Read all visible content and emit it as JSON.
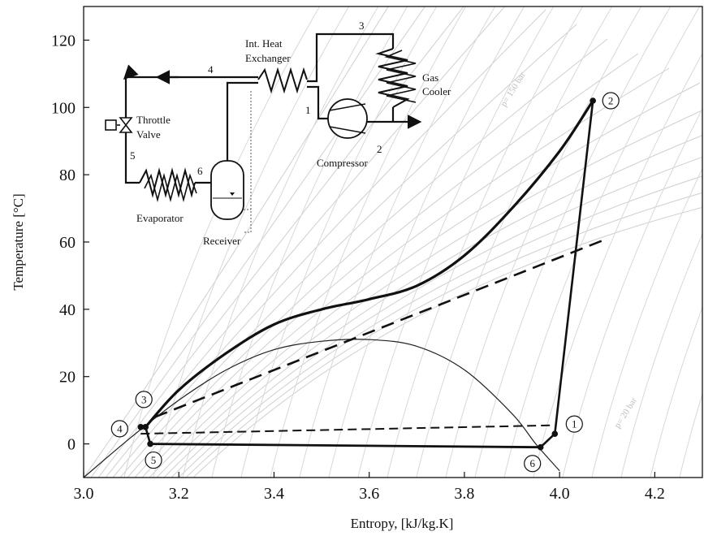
{
  "chart_data": {
    "type": "line",
    "xlabel": "Entropy, [kJ/kg.K]",
    "ylabel": "Temperature [°C]",
    "xlim": [
      3.0,
      4.3
    ],
    "ylim": [
      -10,
      130
    ],
    "x_ticks": [
      "3.0",
      "3.2",
      "3.4",
      "3.6",
      "3.8",
      "4.0",
      "4.2"
    ],
    "y_ticks": [
      "0",
      "20",
      "40",
      "60",
      "80",
      "100",
      "120"
    ],
    "x_tick_values": [
      3.0,
      3.2,
      3.4,
      3.6,
      3.8,
      4.0,
      4.2
    ],
    "y_tick_values": [
      0,
      20,
      40,
      60,
      80,
      100,
      120
    ],
    "isobar_labels": [
      "p= 150 bar",
      "p= 20 bar"
    ],
    "saturation_dome": {
      "x": [
        3.0,
        3.1,
        3.2,
        3.3,
        3.4,
        3.5,
        3.6,
        3.7,
        3.8,
        3.9,
        3.95,
        4.0
      ],
      "y": [
        -10,
        2,
        13,
        22,
        28,
        30.5,
        31,
        29,
        22,
        9,
        0,
        -8
      ]
    },
    "cycle": {
      "supercritical_path": {
        "x": [
          3.13,
          3.2,
          3.3,
          3.4,
          3.5,
          3.6,
          3.7,
          3.8,
          3.9,
          4.0,
          4.07
        ],
        "y": [
          5,
          16,
          27,
          35.5,
          40,
          43,
          47,
          56,
          70,
          87,
          102
        ]
      },
      "compression": {
        "x": [
          3.99,
          4.07
        ],
        "y": [
          3,
          102
        ]
      },
      "ihx_low": {
        "x": [
          3.96,
          3.99
        ],
        "y": [
          -1,
          3
        ]
      },
      "evaporation": {
        "x": [
          3.14,
          3.96
        ],
        "y": [
          0,
          -1
        ]
      },
      "throttle": {
        "x": [
          3.13,
          3.14
        ],
        "y": [
          5,
          0
        ]
      }
    },
    "dashed_lines": [
      {
        "x": [
          3.15,
          4.1
        ],
        "y": [
          8,
          61
        ]
      },
      {
        "x": [
          3.12,
          3.98
        ],
        "y": [
          3,
          5.5
        ]
      }
    ],
    "state_points": [
      {
        "label": "1",
        "x": 3.99,
        "y": 3
      },
      {
        "label": "2",
        "x": 4.07,
        "y": 102
      },
      {
        "label": "3",
        "x": 3.13,
        "y": 5
      },
      {
        "label": "4",
        "x": 3.12,
        "y": 5
      },
      {
        "label": "5",
        "x": 3.14,
        "y": 0
      },
      {
        "label": "6",
        "x": 3.96,
        "y": -1
      }
    ]
  },
  "schematic": {
    "ihx_label_line1": "Int. Heat",
    "ihx_label_line2": "Exchanger",
    "gas_cooler_line1": "Gas",
    "gas_cooler_line2": "Cooler",
    "throttle_line1": "Throttle",
    "throttle_line2": "Valve",
    "compressor": "Compressor",
    "evaporator": "Evaporator",
    "receiver": "Receiver",
    "node_1": "1",
    "node_2": "2",
    "node_3": "3",
    "node_4": "4",
    "node_5": "5",
    "node_6": "6"
  }
}
